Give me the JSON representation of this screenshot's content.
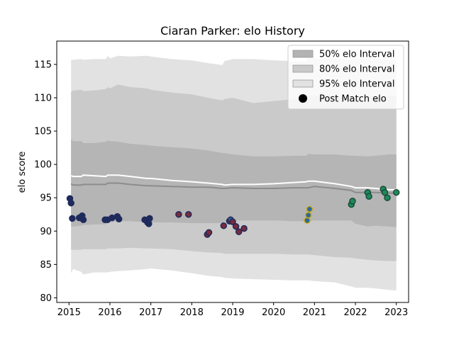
{
  "chart_data": {
    "type": "area",
    "title": "Ciaran Parker: elo History",
    "xlabel": "",
    "ylabel": "elo score",
    "xlim": [
      2014.7,
      2023.3
    ],
    "ylim": [
      79.3,
      118.5
    ],
    "x_ticks": [
      2015,
      2016,
      2017,
      2018,
      2019,
      2020,
      2021,
      2022,
      2023
    ],
    "y_ticks": [
      80,
      85,
      90,
      95,
      100,
      105,
      110,
      115
    ],
    "grid": false,
    "legend_position": "top-right",
    "legend": [
      {
        "label": "50% elo Interval",
        "kind": "band",
        "color": "#b3b3b3"
      },
      {
        "label": "80% elo Interval",
        "kind": "band",
        "color": "#c9c9c9"
      },
      {
        "label": "95% elo Interval",
        "kind": "band",
        "color": "#e2e2e2"
      },
      {
        "label": "Post Match elo",
        "kind": "marker",
        "color": "#000000"
      }
    ],
    "colors": {
      "band95": "#e2e2e2",
      "band80": "#cacaca",
      "band50": "#b5b5b5",
      "median": "#8c8c8c",
      "mean": "#ffffff"
    },
    "bands": {
      "x": [
        2015.05,
        2015.1,
        2015.3,
        2015.35,
        2015.6,
        2015.9,
        2015.95,
        2016.0,
        2016.2,
        2016.5,
        2016.9,
        2017.0,
        2017.5,
        2018.0,
        2018.4,
        2018.75,
        2018.8,
        2019.0,
        2019.5,
        2020.0,
        2020.5,
        2020.8,
        2020.85,
        2021.0,
        2021.5,
        2021.9,
        2022.0,
        2022.3,
        2022.5,
        2022.8,
        2023.0
      ],
      "p95_upper": [
        115.7,
        115.7,
        115.8,
        115.7,
        115.8,
        115.8,
        116.3,
        115.9,
        116.3,
        116.2,
        116.3,
        116.2,
        115.8,
        115.6,
        115.2,
        114.9,
        115.5,
        115.8,
        115.8,
        115.6,
        115.5,
        115.4,
        116.0,
        115.9,
        115.9,
        115.7,
        115.9,
        115.8,
        115.8,
        115.7,
        115.7
      ],
      "p80_upper": [
        110.9,
        111.1,
        111.2,
        111.0,
        111.1,
        111.3,
        111.6,
        111.4,
        112.0,
        111.6,
        111.4,
        111.2,
        110.8,
        110.5,
        110.0,
        109.6,
        109.8,
        110.0,
        109.2,
        109.5,
        109.8,
        110.0,
        110.4,
        110.3,
        110.2,
        110.0,
        109.8,
        110.2,
        110.3,
        110.3,
        110.3
      ],
      "p50_upper": [
        103.8,
        103.5,
        103.5,
        103.2,
        103.2,
        103.4,
        103.6,
        103.5,
        103.4,
        103.1,
        102.9,
        102.8,
        102.6,
        102.4,
        102.1,
        101.7,
        101.7,
        101.5,
        101.2,
        101.2,
        101.3,
        101.3,
        101.6,
        101.5,
        101.5,
        101.3,
        101.3,
        101.2,
        101.3,
        101.5,
        101.5
      ],
      "p50_lower": [
        90.7,
        90.7,
        90.8,
        90.9,
        91.0,
        91.0,
        91.2,
        91.3,
        91.5,
        91.5,
        91.3,
        91.3,
        91.3,
        91.2,
        91.2,
        91.2,
        91.4,
        91.6,
        91.6,
        91.6,
        91.5,
        91.5,
        91.5,
        91.6,
        91.6,
        91.6,
        91.1,
        90.7,
        90.8,
        90.7,
        90.6
      ],
      "p80_lower": [
        87.2,
        87.2,
        87.2,
        87.3,
        87.3,
        87.3,
        87.4,
        87.4,
        87.4,
        87.5,
        87.4,
        87.4,
        87.3,
        87.0,
        86.8,
        86.7,
        86.6,
        86.6,
        86.6,
        86.6,
        86.5,
        86.5,
        86.5,
        86.4,
        86.1,
        86.0,
        85.9,
        85.7,
        85.6,
        85.5,
        85.5
      ],
      "p95_lower": [
        83.7,
        84.3,
        83.9,
        83.5,
        83.8,
        83.8,
        83.8,
        83.9,
        84.0,
        84.1,
        84.3,
        84.4,
        84.1,
        83.7,
        83.3,
        83.1,
        83.0,
        82.9,
        82.8,
        82.7,
        82.6,
        82.6,
        82.6,
        82.5,
        82.3,
        81.7,
        81.5,
        81.5,
        81.4,
        81.2,
        81.1
      ],
      "median": [
        97.1,
        96.9,
        96.9,
        97.0,
        97.0,
        97.0,
        97.2,
        97.2,
        97.2,
        97.0,
        96.8,
        96.8,
        96.7,
        96.6,
        96.6,
        96.4,
        96.4,
        96.5,
        96.4,
        96.4,
        96.5,
        96.5,
        96.5,
        96.7,
        96.4,
        96.1,
        95.8,
        95.8,
        95.8,
        95.7,
        95.7
      ],
      "mean": [
        98.3,
        98.2,
        98.2,
        98.4,
        98.3,
        98.2,
        98.4,
        98.4,
        98.4,
        98.2,
        97.9,
        97.9,
        97.6,
        97.4,
        97.2,
        97.0,
        96.9,
        97.0,
        97.0,
        97.1,
        97.3,
        97.4,
        97.5,
        97.5,
        97.1,
        96.7,
        96.5,
        96.5,
        96.4,
        96.2,
        96.2
      ]
    },
    "post_match_elo": [
      {
        "x": 2015.02,
        "y": 94.9,
        "edge": "#1f2a5c",
        "fill": "#1f2a5c"
      },
      {
        "x": 2015.05,
        "y": 94.2,
        "edge": "#1f2a5c",
        "fill": "#1f2a5c"
      },
      {
        "x": 2015.08,
        "y": 91.9,
        "edge": "#1f2a5c",
        "fill": "#1f2a5c"
      },
      {
        "x": 2015.25,
        "y": 92.0,
        "edge": "#1f2a5c",
        "fill": "#1f2a5c"
      },
      {
        "x": 2015.32,
        "y": 92.3,
        "edge": "#1f2a5c",
        "fill": "#1f2a5c"
      },
      {
        "x": 2015.35,
        "y": 91.7,
        "edge": "#1f2a5c",
        "fill": "#1f2a5c"
      },
      {
        "x": 2015.88,
        "y": 91.7,
        "edge": "#1f2a5c",
        "fill": "#1f2a5c"
      },
      {
        "x": 2015.94,
        "y": 91.7,
        "edge": "#1f2a5c",
        "fill": "#1f2a5c"
      },
      {
        "x": 2016.05,
        "y": 92.0,
        "edge": "#1f2a5c",
        "fill": "#1f2a5c"
      },
      {
        "x": 2016.18,
        "y": 92.2,
        "edge": "#1f2a5c",
        "fill": "#1f2a5c"
      },
      {
        "x": 2016.22,
        "y": 91.8,
        "edge": "#1f2a5c",
        "fill": "#1f2a5c"
      },
      {
        "x": 2016.85,
        "y": 91.7,
        "edge": "#1f2a5c",
        "fill": "#1f2a5c"
      },
      {
        "x": 2016.92,
        "y": 91.3,
        "edge": "#1f2a5c",
        "fill": "#1f2a5c"
      },
      {
        "x": 2016.95,
        "y": 91.1,
        "edge": "#1f2a5c",
        "fill": "#1f2a5c"
      },
      {
        "x": 2016.97,
        "y": 91.9,
        "edge": "#1f2a5c",
        "fill": "#1f2a5c"
      },
      {
        "x": 2017.68,
        "y": 92.5,
        "edge": "#1f2a5c",
        "fill": "#7a2a3a"
      },
      {
        "x": 2017.92,
        "y": 92.5,
        "edge": "#1f2a5c",
        "fill": "#7a2a3a"
      },
      {
        "x": 2018.38,
        "y": 89.5,
        "edge": "#1f2a5c",
        "fill": "#7a2a3a"
      },
      {
        "x": 2018.42,
        "y": 89.8,
        "edge": "#1f2a5c",
        "fill": "#7a2a3a"
      },
      {
        "x": 2018.78,
        "y": 90.8,
        "edge": "#1f2a5c",
        "fill": "#7a2a3a"
      },
      {
        "x": 2018.92,
        "y": 91.5,
        "edge": "#1f2a5c",
        "fill": "#7a2a3a"
      },
      {
        "x": 2018.95,
        "y": 91.7,
        "edge": "#1f2a5c",
        "fill": "#3a5a8a"
      },
      {
        "x": 2019.0,
        "y": 91.4,
        "edge": "#1f2a5c",
        "fill": "#7a2a3a"
      },
      {
        "x": 2019.08,
        "y": 90.7,
        "edge": "#1f2a5c",
        "fill": "#7a2a3a"
      },
      {
        "x": 2019.15,
        "y": 89.9,
        "edge": "#1f2a5c",
        "fill": "#7a2a3a"
      },
      {
        "x": 2019.28,
        "y": 90.4,
        "edge": "#1f2a5c",
        "fill": "#7a2a3a"
      },
      {
        "x": 2020.82,
        "y": 91.6,
        "edge": "#c8a81e",
        "fill": "#2a6a9a"
      },
      {
        "x": 2020.85,
        "y": 92.4,
        "edge": "#c8a81e",
        "fill": "#2a6a9a"
      },
      {
        "x": 2020.88,
        "y": 93.3,
        "edge": "#c8a81e",
        "fill": "#2a6a9a"
      },
      {
        "x": 2021.9,
        "y": 94.0,
        "edge": "#1a4a3a",
        "fill": "#1e8a5a"
      },
      {
        "x": 2021.93,
        "y": 94.5,
        "edge": "#1a4a3a",
        "fill": "#1e8a5a"
      },
      {
        "x": 2022.3,
        "y": 95.8,
        "edge": "#1a4a3a",
        "fill": "#1e8a5a"
      },
      {
        "x": 2022.33,
        "y": 95.2,
        "edge": "#1a4a3a",
        "fill": "#1e8a5a"
      },
      {
        "x": 2022.68,
        "y": 96.3,
        "edge": "#1a4a3a",
        "fill": "#1e8a5a"
      },
      {
        "x": 2022.72,
        "y": 95.8,
        "edge": "#1a4a3a",
        "fill": "#1e8a5a"
      },
      {
        "x": 2022.78,
        "y": 95.0,
        "edge": "#1a4a3a",
        "fill": "#1e8a5a"
      },
      {
        "x": 2023.0,
        "y": 95.8,
        "edge": "#1a4a3a",
        "fill": "#1e8a5a"
      }
    ]
  }
}
